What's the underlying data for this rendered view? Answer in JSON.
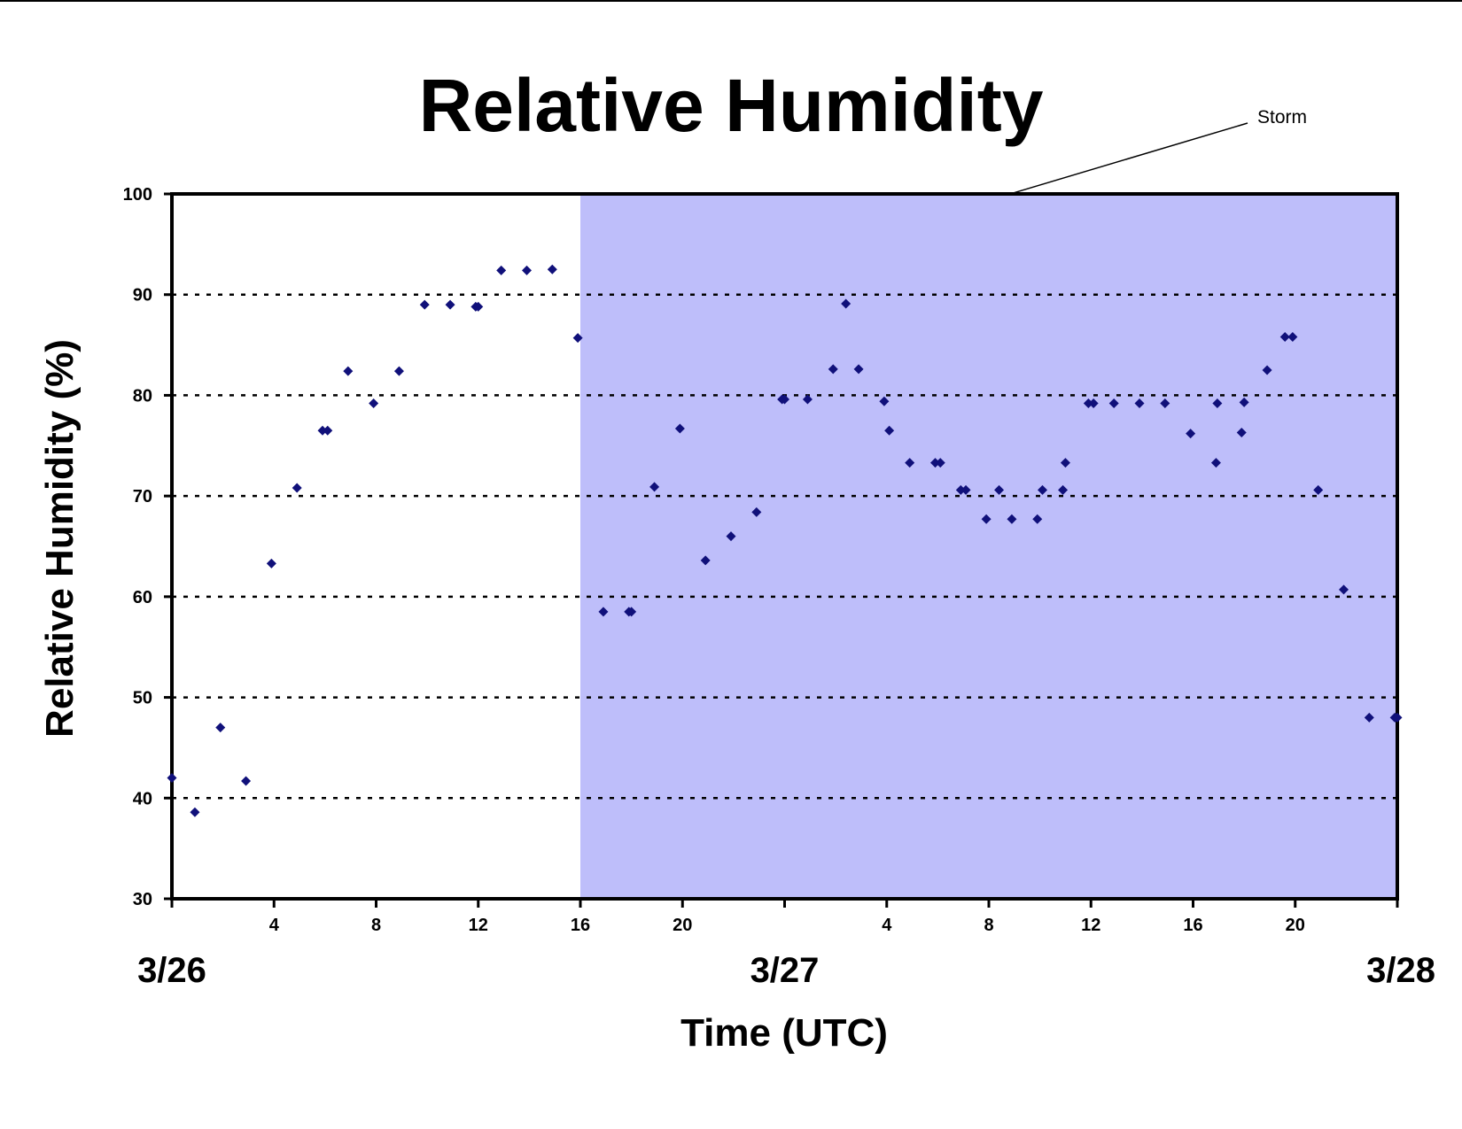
{
  "chart_data": {
    "type": "scatter",
    "title": "Relative Humidity",
    "xlabel": "Time (UTC)",
    "ylabel": "Relative Humidity (%)",
    "xlim": [
      0,
      48
    ],
    "ylim": [
      30,
      100
    ],
    "y_ticks": [
      "30",
      "40",
      "50",
      "60",
      "70",
      "80",
      "90",
      "100"
    ],
    "x_hour_ticks": [
      {
        "x": 4,
        "label": "4"
      },
      {
        "x": 8,
        "label": "8"
      },
      {
        "x": 12,
        "label": "12"
      },
      {
        "x": 16,
        "label": "16"
      },
      {
        "x": 20,
        "label": "20"
      },
      {
        "x": 28,
        "label": "4"
      },
      {
        "x": 32,
        "label": "8"
      },
      {
        "x": 36,
        "label": "12"
      },
      {
        "x": 40,
        "label": "16"
      },
      {
        "x": 44,
        "label": "20"
      }
    ],
    "x_minor_ticks": [
      0,
      24,
      48
    ],
    "date_labels": [
      {
        "x": 0,
        "label": "3/26"
      },
      {
        "x": 24,
        "label": "3/27"
      },
      {
        "x": 48,
        "label": "3/28"
      }
    ],
    "grid": "horizontal dotted",
    "shaded_region": {
      "label": "Storm",
      "x_start": 16,
      "x_end": 48,
      "color": "#bebefa"
    },
    "annotation": {
      "text": "Storm"
    },
    "series_color": "#10107a",
    "points": [
      [
        0,
        42
      ],
      [
        0.9,
        38.6
      ],
      [
        1.9,
        47
      ],
      [
        2.9,
        41.7
      ],
      [
        3.9,
        63.3
      ],
      [
        4.9,
        70.8
      ],
      [
        5.9,
        76.5
      ],
      [
        6.1,
        76.5
      ],
      [
        6.9,
        82.4
      ],
      [
        7.9,
        79.2
      ],
      [
        8.9,
        82.4
      ],
      [
        9.9,
        89
      ],
      [
        10.9,
        89
      ],
      [
        11.9,
        88.8
      ],
      [
        12.0,
        88.8
      ],
      [
        12.9,
        92.4
      ],
      [
        13.9,
        92.4
      ],
      [
        14.9,
        92.5
      ],
      [
        15.9,
        85.7
      ],
      [
        16.9,
        58.5
      ],
      [
        17.9,
        58.5
      ],
      [
        18.0,
        58.5
      ],
      [
        18.9,
        70.9
      ],
      [
        19.9,
        76.7
      ],
      [
        20.9,
        63.6
      ],
      [
        21.9,
        66
      ],
      [
        22.9,
        68.4
      ],
      [
        23.9,
        79.6
      ],
      [
        24.0,
        79.6
      ],
      [
        24.9,
        79.6
      ],
      [
        25.9,
        82.6
      ],
      [
        26.4,
        89.1
      ],
      [
        26.9,
        82.6
      ],
      [
        27.9,
        79.4
      ],
      [
        28.1,
        76.5
      ],
      [
        28.9,
        73.3
      ],
      [
        29.9,
        73.3
      ],
      [
        30.1,
        73.3
      ],
      [
        30.9,
        70.6
      ],
      [
        31.1,
        70.6
      ],
      [
        31.9,
        67.7
      ],
      [
        32.4,
        70.6
      ],
      [
        32.9,
        67.7
      ],
      [
        33.9,
        67.7
      ],
      [
        34.1,
        70.6
      ],
      [
        34.9,
        70.6
      ],
      [
        35.0,
        73.3
      ],
      [
        35.9,
        79.2
      ],
      [
        36.1,
        79.2
      ],
      [
        36.9,
        79.2
      ],
      [
        37.9,
        79.2
      ],
      [
        38.9,
        79.2
      ],
      [
        39.9,
        76.2
      ],
      [
        40.9,
        73.3
      ],
      [
        40.95,
        79.2
      ],
      [
        41.9,
        76.3
      ],
      [
        42.0,
        79.3
      ],
      [
        42.9,
        82.5
      ],
      [
        43.6,
        85.8
      ],
      [
        43.9,
        85.8
      ],
      [
        44.9,
        70.6
      ],
      [
        45.9,
        60.7
      ],
      [
        46.9,
        48
      ],
      [
        47.9,
        48
      ],
      [
        48.0,
        48
      ]
    ]
  }
}
